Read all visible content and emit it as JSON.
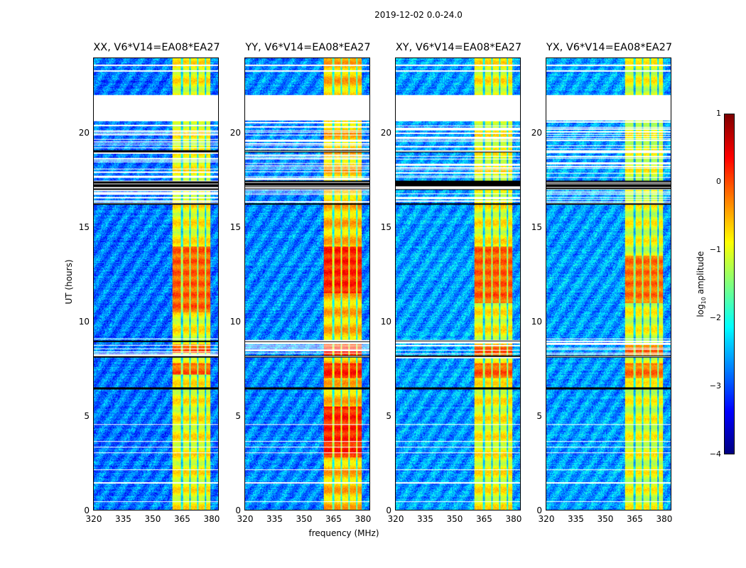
{
  "chart_data": {
    "type": "heatmap",
    "title": "2019-12-02 0.0-24.0",
    "xlabel": "frequency (MHz)",
    "ylabel": "UT (hours)",
    "xlim": [
      320,
      384
    ],
    "ylim": [
      0,
      24
    ],
    "xticks": [
      "320",
      "335",
      "350",
      "365",
      "380"
    ],
    "yticks": [
      "0",
      "5",
      "10",
      "15",
      "20"
    ],
    "colorbar": {
      "label_main": "log",
      "label_sub": "10",
      "label_rest": " amplitude",
      "range": [
        -4,
        1
      ],
      "ticks": [
        "1",
        "0",
        "−1",
        "−2",
        "−3",
        "−4"
      ],
      "colormap": "jet"
    },
    "panels": [
      {
        "title": "XX, V6*V14=EA08*EA27",
        "band_level": -0.9,
        "hot_hours": [
          [
            7.2,
            7.8
          ],
          [
            8.3,
            8.8
          ],
          [
            10.5,
            14
          ]
        ],
        "background_level": -2.8
      },
      {
        "title": "YY, V6*V14=EA08*EA27",
        "band_level": -0.6,
        "hot_hours": [
          [
            2.8,
            5.5
          ],
          [
            7.0,
            7.8
          ],
          [
            8.2,
            8.8
          ],
          [
            11.5,
            14
          ]
        ],
        "background_level": -2.7
      },
      {
        "title": "XY, V6*V14=EA08*EA27",
        "band_level": -0.9,
        "hot_hours": [
          [
            7.0,
            7.8
          ],
          [
            8.2,
            8.8
          ],
          [
            11,
            14
          ]
        ],
        "background_level": -2.6
      },
      {
        "title": "YX, V6*V14=EA08*EA27",
        "band_level": -1.0,
        "hot_hours": [
          [
            7.0,
            7.8
          ],
          [
            8.2,
            8.8
          ],
          [
            11,
            13.5
          ]
        ],
        "background_level": -2.6
      }
    ],
    "rfi_band_mhz": [
      360.5,
      380
    ],
    "band_channel_edges_mhz": [
      365.5,
      369.5,
      373.5,
      377.5
    ],
    "blank_hours": [
      [
        20.7,
        22.05
      ],
      [
        0.4,
        0.45
      ],
      [
        1.4,
        1.45
      ],
      [
        2.1,
        2.15
      ],
      [
        3.0,
        3.05
      ],
      [
        3.3,
        3.35
      ],
      [
        3.6,
        3.65
      ],
      [
        4.5,
        4.55
      ],
      [
        23.3,
        23.35
      ],
      [
        23.6,
        23.65
      ]
    ],
    "flagged_hours": [
      [
        6.4,
        6.5
      ],
      [
        8.1,
        8.2
      ],
      [
        8.9,
        9.0
      ],
      [
        16.2,
        16.3
      ],
      [
        17.0,
        17.5
      ],
      [
        19.0,
        19.1
      ]
    ],
    "sparse_hours": [
      [
        16.3,
        20.7
      ],
      [
        8.0,
        9.1
      ]
    ]
  }
}
